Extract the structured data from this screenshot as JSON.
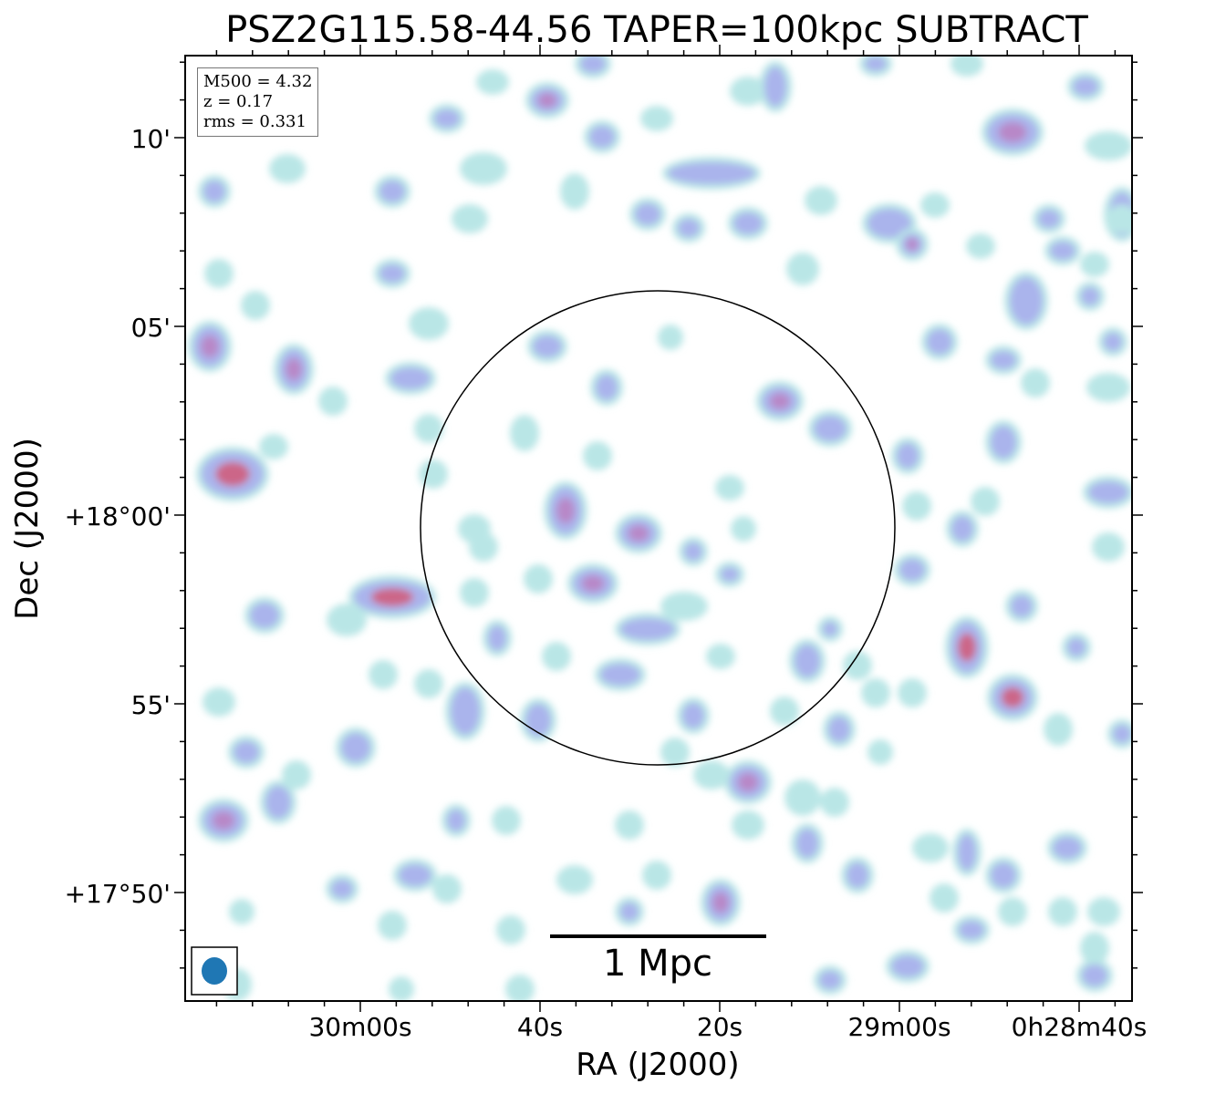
{
  "title": "PSZ2G115.58-44.56 TAPER=100kpc SUBTRACT",
  "xlabel": "RA (J2000)",
  "ylabel": "Dec (J2000)",
  "y_ticks": [
    "10'",
    "05'",
    "+18°00'",
    "55'",
    "+17°50'"
  ],
  "x_ticks": [
    "30m00s",
    "40s",
    "20s",
    "29m00s",
    "0h28m40s"
  ],
  "info": {
    "m500": "M500 = 4.32",
    "z": "z = 0.17",
    "rms": "rms = 0.331"
  },
  "scale_bar": "1 Mpc",
  "colors": {
    "emission_low": "#b9e6e6",
    "emission_mid": "#aab4ec",
    "emission_high": "#cc6688",
    "beam": "#1f77b4"
  }
}
